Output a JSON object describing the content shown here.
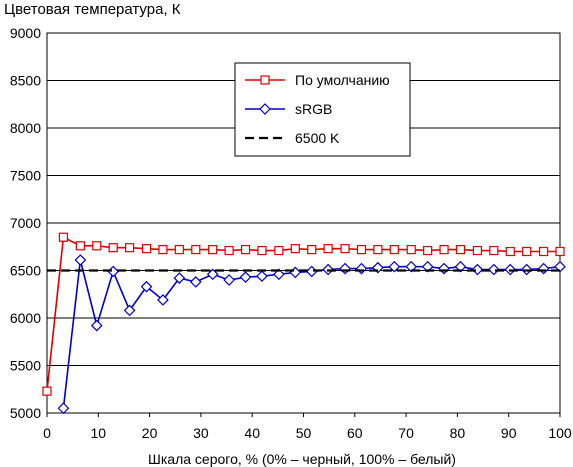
{
  "chart_data": {
    "type": "line",
    "title": "Цветовая температура, К",
    "xlabel": "Шкала серого, % (0% – черный, 100% – белый)",
    "ylabel": "",
    "xlim": [
      0,
      100
    ],
    "ylim": [
      5000,
      9000
    ],
    "xticks": [
      "0",
      "10",
      "20",
      "30",
      "40",
      "50",
      "60",
      "70",
      "80",
      "90",
      "100"
    ],
    "yticks": [
      "5000",
      "5500",
      "6000",
      "6500",
      "7000",
      "7500",
      "8000",
      "8500",
      "9000"
    ],
    "grid": "horizontal",
    "legend_position": "upper-center",
    "series": [
      {
        "name": "По умолчанию",
        "color": "#e00000",
        "marker": "square",
        "x": [
          0,
          3.2,
          6.5,
          9.7,
          12.9,
          16.1,
          19.4,
          22.6,
          25.8,
          29,
          32.3,
          35.5,
          38.7,
          41.9,
          45.2,
          48.4,
          51.6,
          54.8,
          58.1,
          61.3,
          64.5,
          67.7,
          71,
          74.2,
          77.4,
          80.6,
          83.9,
          87.1,
          90.3,
          93.5,
          96.8,
          100
        ],
        "y": [
          5230,
          6850,
          6760,
          6760,
          6740,
          6740,
          6730,
          6720,
          6720,
          6720,
          6720,
          6710,
          6720,
          6710,
          6710,
          6730,
          6720,
          6730,
          6730,
          6720,
          6720,
          6720,
          6720,
          6710,
          6720,
          6720,
          6710,
          6710,
          6700,
          6700,
          6700,
          6700
        ]
      },
      {
        "name": "sRGB",
        "color": "#0000cc",
        "marker": "diamond",
        "x": [
          3.2,
          6.5,
          9.7,
          12.9,
          16.1,
          19.4,
          22.6,
          25.8,
          29,
          32.3,
          35.5,
          38.7,
          41.9,
          45.2,
          48.4,
          51.6,
          54.8,
          58.1,
          61.3,
          64.5,
          67.7,
          71,
          74.2,
          77.4,
          80.6,
          83.9,
          87.1,
          90.3,
          93.5,
          96.8,
          100
        ],
        "y": [
          5050,
          6610,
          5920,
          6490,
          6080,
          6330,
          6190,
          6420,
          6380,
          6460,
          6400,
          6430,
          6440,
          6460,
          6480,
          6490,
          6510,
          6520,
          6520,
          6530,
          6540,
          6540,
          6540,
          6520,
          6540,
          6510,
          6510,
          6510,
          6510,
          6520,
          6540
        ]
      },
      {
        "name": "6500 K",
        "color": "#000000",
        "marker": "none",
        "dashed": true,
        "x": [
          0,
          100
        ],
        "y": [
          6500,
          6500
        ]
      }
    ]
  }
}
